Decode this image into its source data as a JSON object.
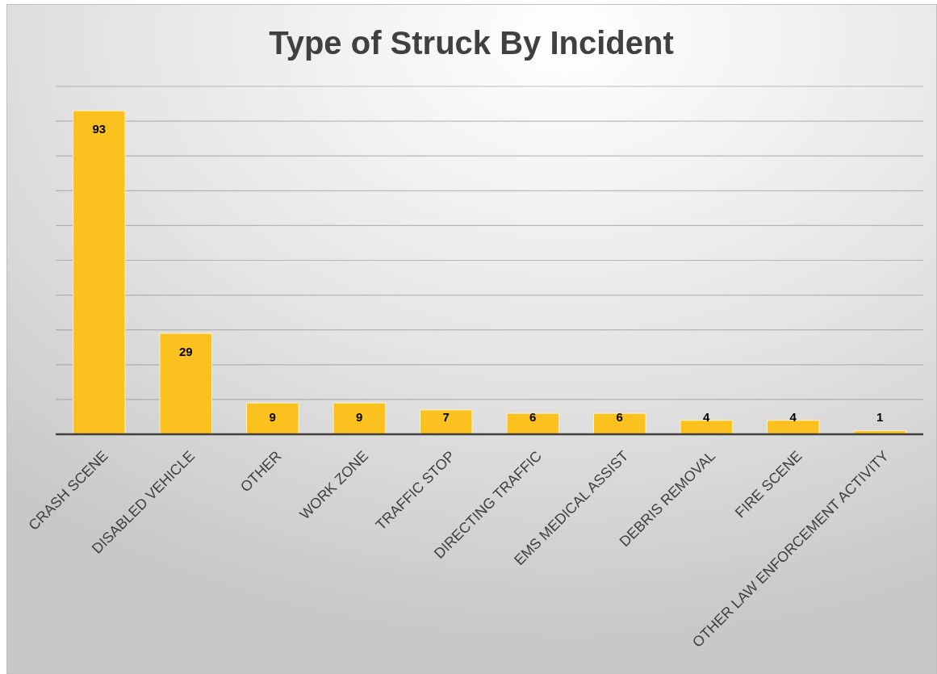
{
  "chart_data": {
    "type": "bar",
    "title": "Type of Struck By Incident",
    "categories": [
      "CRASH SCENE",
      "DISABLED VEHICLE",
      "OTHER",
      "WORK ZONE",
      "TRAFFIC STOP",
      "DIRECTING TRAFFIC",
      "EMS MEDICAL ASSIST",
      "DEBRIS REMOVAL",
      "FIRE SCENE",
      "OTHER LAW ENFORCEMENT ACTIVITY"
    ],
    "values": [
      93,
      29,
      9,
      9,
      7,
      6,
      6,
      4,
      4,
      1
    ],
    "color": "#fbc21f",
    "ylim": [
      0,
      100
    ],
    "yticks": [
      {
        "value": 0,
        "label": null
      },
      {
        "value": 10,
        "label": null
      },
      {
        "value": 20,
        "label": null
      },
      {
        "value": 30,
        "label": null
      },
      {
        "value": 40,
        "label": null
      },
      {
        "value": 50,
        "label": null
      },
      {
        "value": 60,
        "label": null
      },
      {
        "value": 70,
        "label": null
      },
      {
        "value": 80,
        "label": null
      },
      {
        "value": 90,
        "label": null
      },
      {
        "value": 100,
        "label": null
      }
    ],
    "grid": "y",
    "tick_labels": "x",
    "data_labels": true
  }
}
